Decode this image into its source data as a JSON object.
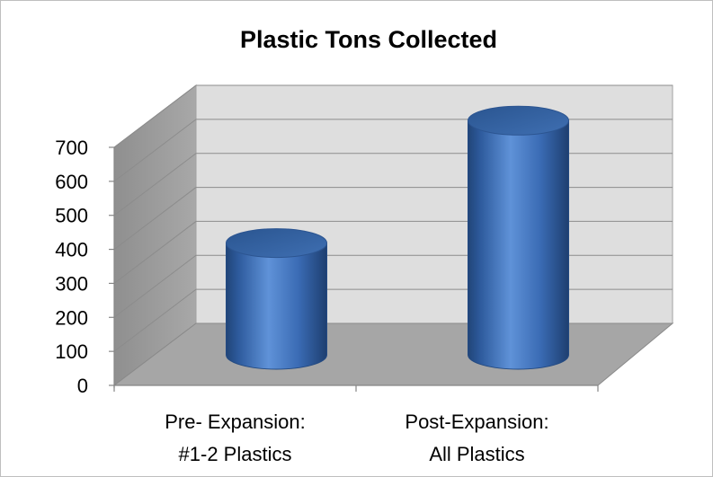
{
  "chart_data": {
    "type": "bar",
    "style": "3d-cylinder",
    "title": "Plastic Tons Collected",
    "xlabel": "",
    "ylabel": "",
    "categories": [
      [
        "Pre- Expansion:",
        "#1-2 Plastics"
      ],
      [
        "Post-Expansion:",
        "All Plastics"
      ]
    ],
    "values": [
      330,
      690
    ],
    "ylim": [
      0,
      700
    ],
    "yticks": [
      0,
      100,
      200,
      300,
      400,
      500,
      600,
      700
    ],
    "grid": true,
    "legend": "none",
    "colors": {
      "bar_fill": "#3e6fb8",
      "bar_top": "#335f9f",
      "wall": "#dedede",
      "side_wall": "#9a9a9a",
      "floor": "#a6a6a6",
      "gridline": "#8c8c8c"
    }
  }
}
